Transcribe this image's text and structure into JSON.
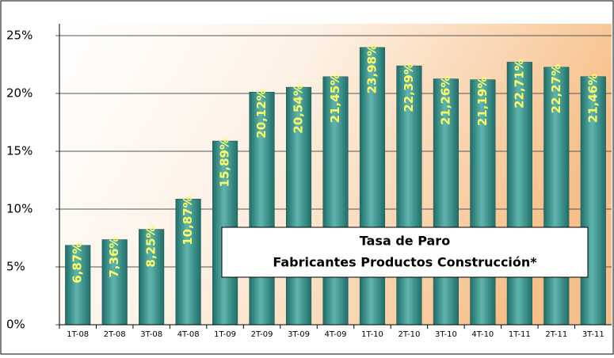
{
  "chart_data": {
    "type": "bar",
    "title": "Tasa de Paro",
    "subtitle": "Fabricantes Productos Construcción*",
    "categories": [
      "1T-08",
      "2T-08",
      "3T-08",
      "4T-08",
      "1T-09",
      "2T-09",
      "3T-09",
      "4T-09",
      "1T-10",
      "2T-10",
      "3T-10",
      "4T-10",
      "1T-11",
      "2T-11",
      "3T-11"
    ],
    "values": [
      6.87,
      7.36,
      8.25,
      10.87,
      15.89,
      20.12,
      20.54,
      21.45,
      23.98,
      22.39,
      21.26,
      21.19,
      22.71,
      22.27,
      21.46
    ],
    "value_labels": [
      "6,87%",
      "7,36%",
      "8,25%",
      "10,87%",
      "15,89%",
      "20,12%",
      "20,54%",
      "21,45%",
      "23,98%",
      "22,39%",
      "21,26%",
      "21,19%",
      "22,71%",
      "22,27%",
      "21,46%"
    ],
    "color": "#2e8b84",
    "ylim": [
      0,
      25
    ],
    "yticks": [
      {
        "value": 0,
        "label": "0%"
      },
      {
        "value": 5,
        "label": "5%"
      },
      {
        "value": 10,
        "label": "10%"
      },
      {
        "value": 15,
        "label": "15%"
      },
      {
        "value": 20,
        "label": "20%"
      },
      {
        "value": 25,
        "label": "25%"
      }
    ],
    "grid": true
  }
}
